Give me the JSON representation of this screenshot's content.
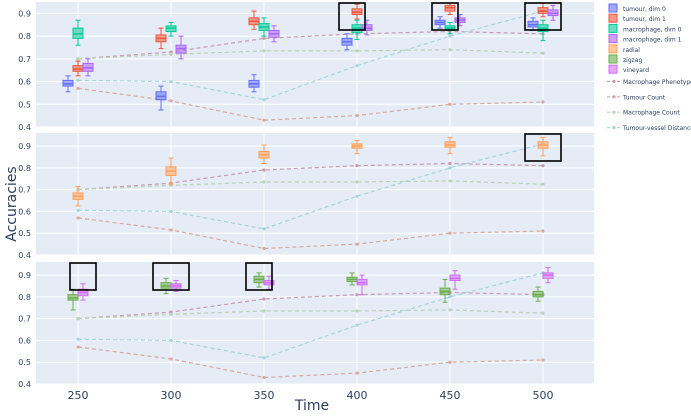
{
  "chart_data": {
    "type": "box",
    "xlabel": "Time",
    "ylabel": "Accuracies",
    "x_ticks": [
      250,
      300,
      350,
      400,
      450,
      500
    ],
    "panels": [
      {
        "id": "top",
        "ylim": [
          0.4,
          0.95
        ],
        "y_ticks": [
          0.4,
          0.5,
          0.6,
          0.7,
          0.8,
          0.9
        ],
        "boxes": [
          {
            "series": "tumour, dim 0",
            "x": 250,
            "offset": -1,
            "q1": 0.58,
            "median": 0.59,
            "q3": 0.605,
            "lo": 0.555,
            "hi": 0.625
          },
          {
            "series": "tumour, dim 1",
            "x": 250,
            "offset": 0,
            "q1": 0.645,
            "median": 0.655,
            "q3": 0.67,
            "lo": 0.625,
            "hi": 0.69
          },
          {
            "series": "macrophage, dim 0",
            "x": 250,
            "offset": 0,
            "q1": 0.79,
            "median": 0.81,
            "q3": 0.835,
            "lo": 0.76,
            "hi": 0.87
          },
          {
            "series": "macrophage, dim 1",
            "x": 250,
            "offset": 1,
            "q1": 0.645,
            "median": 0.66,
            "q3": 0.68,
            "lo": 0.625,
            "hi": 0.7
          },
          {
            "series": "tumour, dim 0",
            "x": 300,
            "offset": -1,
            "q1": 0.52,
            "median": 0.535,
            "q3": 0.555,
            "lo": 0.475,
            "hi": 0.58
          },
          {
            "series": "tumour, dim 1",
            "x": 300,
            "offset": -1,
            "q1": 0.775,
            "median": 0.79,
            "q3": 0.805,
            "lo": 0.745,
            "hi": 0.835
          },
          {
            "series": "macrophage, dim 0",
            "x": 300,
            "offset": 0,
            "q1": 0.82,
            "median": 0.835,
            "q3": 0.845,
            "lo": 0.8,
            "hi": 0.86
          },
          {
            "series": "macrophage, dim 1",
            "x": 300,
            "offset": 1,
            "q1": 0.725,
            "median": 0.745,
            "q3": 0.76,
            "lo": 0.7,
            "hi": 0.8
          },
          {
            "series": "tumour, dim 0",
            "x": 350,
            "offset": -1,
            "q1": 0.575,
            "median": 0.59,
            "q3": 0.605,
            "lo": 0.555,
            "hi": 0.63
          },
          {
            "series": "tumour, dim 1",
            "x": 350,
            "offset": -1,
            "q1": 0.85,
            "median": 0.865,
            "q3": 0.88,
            "lo": 0.83,
            "hi": 0.91
          },
          {
            "series": "macrophage, dim 0",
            "x": 350,
            "offset": 0,
            "q1": 0.825,
            "median": 0.84,
            "q3": 0.855,
            "lo": 0.8,
            "hi": 0.88
          },
          {
            "series": "macrophage, dim 1",
            "x": 350,
            "offset": 1,
            "q1": 0.795,
            "median": 0.81,
            "q3": 0.825,
            "lo": 0.775,
            "hi": 0.845
          },
          {
            "series": "tumour, dim 0",
            "x": 400,
            "offset": -1,
            "q1": 0.76,
            "median": 0.775,
            "q3": 0.79,
            "lo": 0.74,
            "hi": 0.81
          },
          {
            "series": "tumour, dim 1",
            "x": 400,
            "offset": 0,
            "q1": 0.895,
            "median": 0.905,
            "q3": 0.92,
            "lo": 0.875,
            "hi": 0.94
          },
          {
            "series": "macrophage, dim 0",
            "x": 400,
            "offset": 0,
            "q1": 0.815,
            "median": 0.835,
            "q3": 0.85,
            "lo": 0.785,
            "hi": 0.87
          },
          {
            "series": "macrophage, dim 1",
            "x": 400,
            "offset": 1,
            "q1": 0.825,
            "median": 0.835,
            "q3": 0.85,
            "lo": 0.805,
            "hi": 0.87
          },
          {
            "series": "tumour, dim 0",
            "x": 450,
            "offset": -1,
            "q1": 0.85,
            "median": 0.86,
            "q3": 0.87,
            "lo": 0.835,
            "hi": 0.885
          },
          {
            "series": "tumour, dim 1",
            "x": 450,
            "offset": 0,
            "q1": 0.91,
            "median": 0.925,
            "q3": 0.935,
            "lo": 0.895,
            "hi": 0.945
          },
          {
            "series": "macrophage, dim 0",
            "x": 450,
            "offset": 0,
            "q1": 0.825,
            "median": 0.835,
            "q3": 0.845,
            "lo": 0.81,
            "hi": 0.86
          },
          {
            "series": "macrophage, dim 1",
            "x": 450,
            "offset": 1,
            "q1": 0.86,
            "median": 0.87,
            "q3": 0.88,
            "lo": 0.845,
            "hi": 0.895
          },
          {
            "series": "tumour, dim 0",
            "x": 500,
            "offset": -1,
            "q1": 0.84,
            "median": 0.85,
            "q3": 0.865,
            "lo": 0.825,
            "hi": 0.88
          },
          {
            "series": "tumour, dim 1",
            "x": 500,
            "offset": 0,
            "q1": 0.9,
            "median": 0.91,
            "q3": 0.925,
            "lo": 0.885,
            "hi": 0.945
          },
          {
            "series": "macrophage, dim 0",
            "x": 500,
            "offset": 0,
            "q1": 0.82,
            "median": 0.835,
            "q3": 0.85,
            "lo": 0.78,
            "hi": 0.87
          },
          {
            "series": "macrophage, dim 1",
            "x": 500,
            "offset": 1,
            "q1": 0.89,
            "median": 0.9,
            "q3": 0.915,
            "lo": 0.87,
            "hi": 0.935
          }
        ],
        "highlights": [
          {
            "x": 400,
            "offset": -0.5
          },
          {
            "x": 450,
            "offset": -0.5
          },
          {
            "x": 500,
            "offset": 0
          }
        ]
      },
      {
        "id": "middle",
        "ylim": [
          0.4,
          0.96
        ],
        "y_ticks": [
          0.4,
          0.5,
          0.6,
          0.7,
          0.8,
          0.9
        ],
        "boxes": [
          {
            "series": "radial",
            "x": 250,
            "offset": 0,
            "q1": 0.655,
            "median": 0.67,
            "q3": 0.685,
            "lo": 0.625,
            "hi": 0.715
          },
          {
            "series": "radial",
            "x": 300,
            "offset": 0,
            "q1": 0.765,
            "median": 0.785,
            "q3": 0.805,
            "lo": 0.725,
            "hi": 0.845
          },
          {
            "series": "radial",
            "x": 350,
            "offset": 0,
            "q1": 0.845,
            "median": 0.86,
            "q3": 0.875,
            "lo": 0.82,
            "hi": 0.905
          },
          {
            "series": "radial",
            "x": 400,
            "offset": 0,
            "q1": 0.89,
            "median": 0.9,
            "q3": 0.91,
            "lo": 0.865,
            "hi": 0.925
          },
          {
            "series": "radial",
            "x": 450,
            "offset": 0,
            "q1": 0.895,
            "median": 0.905,
            "q3": 0.92,
            "lo": 0.865,
            "hi": 0.94
          },
          {
            "series": "radial",
            "x": 500,
            "offset": 0,
            "q1": 0.89,
            "median": 0.905,
            "q3": 0.92,
            "lo": 0.855,
            "hi": 0.94
          }
        ],
        "highlights": [
          {
            "x": 500,
            "offset": 0
          }
        ]
      },
      {
        "id": "bottom",
        "ylim": [
          0.4,
          0.96
        ],
        "y_ticks": [
          0.4,
          0.5,
          0.6,
          0.7,
          0.8,
          0.9
        ],
        "boxes": [
          {
            "series": "zigzag",
            "x": 250,
            "offset": -0.5,
            "q1": 0.785,
            "median": 0.795,
            "q3": 0.81,
            "lo": 0.74,
            "hi": 0.835
          },
          {
            "series": "vineyard",
            "x": 250,
            "offset": 0.5,
            "q1": 0.805,
            "median": 0.82,
            "q3": 0.835,
            "lo": 0.785,
            "hi": 0.86
          },
          {
            "series": "zigzag",
            "x": 300,
            "offset": -0.5,
            "q1": 0.84,
            "median": 0.85,
            "q3": 0.865,
            "lo": 0.815,
            "hi": 0.885
          },
          {
            "series": "vineyard",
            "x": 300,
            "offset": 0.5,
            "q1": 0.84,
            "median": 0.85,
            "q3": 0.86,
            "lo": 0.825,
            "hi": 0.875
          },
          {
            "series": "zigzag",
            "x": 350,
            "offset": -0.5,
            "q1": 0.865,
            "median": 0.88,
            "q3": 0.895,
            "lo": 0.845,
            "hi": 0.91
          },
          {
            "series": "vineyard",
            "x": 350,
            "offset": 0.5,
            "q1": 0.855,
            "median": 0.865,
            "q3": 0.875,
            "lo": 0.835,
            "hi": 0.895
          },
          {
            "series": "zigzag",
            "x": 400,
            "offset": -0.5,
            "q1": 0.87,
            "median": 0.88,
            "q3": 0.89,
            "lo": 0.855,
            "hi": 0.91
          },
          {
            "series": "vineyard",
            "x": 400,
            "offset": 0.5,
            "q1": 0.855,
            "median": 0.865,
            "q3": 0.88,
            "lo": 0.81,
            "hi": 0.9
          },
          {
            "series": "zigzag",
            "x": 450,
            "offset": -0.5,
            "q1": 0.81,
            "median": 0.825,
            "q3": 0.84,
            "lo": 0.775,
            "hi": 0.88
          },
          {
            "series": "vineyard",
            "x": 450,
            "offset": 0.5,
            "q1": 0.875,
            "median": 0.885,
            "q3": 0.9,
            "lo": 0.835,
            "hi": 0.92
          },
          {
            "series": "zigzag",
            "x": 500,
            "offset": -0.5,
            "q1": 0.8,
            "median": 0.81,
            "q3": 0.825,
            "lo": 0.78,
            "hi": 0.845
          },
          {
            "series": "vineyard",
            "x": 500,
            "offset": 0.5,
            "q1": 0.885,
            "median": 0.9,
            "q3": 0.91,
            "lo": 0.865,
            "hi": 0.935
          }
        ],
        "highlights": [
          {
            "x": 250,
            "offset": 0.5
          },
          {
            "x": 300,
            "offset": 0
          },
          {
            "x": 350,
            "offset": -0.5
          }
        ]
      }
    ],
    "reference_lines": [
      {
        "name": "Macrophage Phenotype",
        "color": "#c79bb0",
        "values": [
          0.7,
          0.73,
          0.79,
          0.81,
          0.82,
          0.81
        ]
      },
      {
        "name": "Tumour Count",
        "color": "#d7a9a0",
        "values": [
          0.57,
          0.515,
          0.43,
          0.45,
          0.5,
          0.51
        ]
      },
      {
        "name": "Macrophage Count",
        "color": "#b9d3b9",
        "values": [
          0.7,
          0.72,
          0.735,
          0.735,
          0.74,
          0.725
        ]
      },
      {
        "name": "Tumour-vessel Distance",
        "color": "#a8d4dd",
        "values": [
          0.605,
          0.6,
          0.52,
          0.67,
          0.8,
          0.91
        ]
      }
    ],
    "box_series": [
      {
        "name": "tumour, dim 0",
        "color": "#636efa"
      },
      {
        "name": "tumour, dim 1",
        "color": "#ef553b"
      },
      {
        "name": "macrophage, dim 0",
        "color": "#00cc96"
      },
      {
        "name": "macrophage, dim 1",
        "color": "#ab63fa"
      },
      {
        "name": "radial",
        "color": "#ffa15a"
      },
      {
        "name": "zigzag",
        "color": "#6aae4a"
      },
      {
        "name": "vineyard",
        "color": "#d16cf0"
      }
    ],
    "grid": true,
    "legend_placement": "right"
  }
}
